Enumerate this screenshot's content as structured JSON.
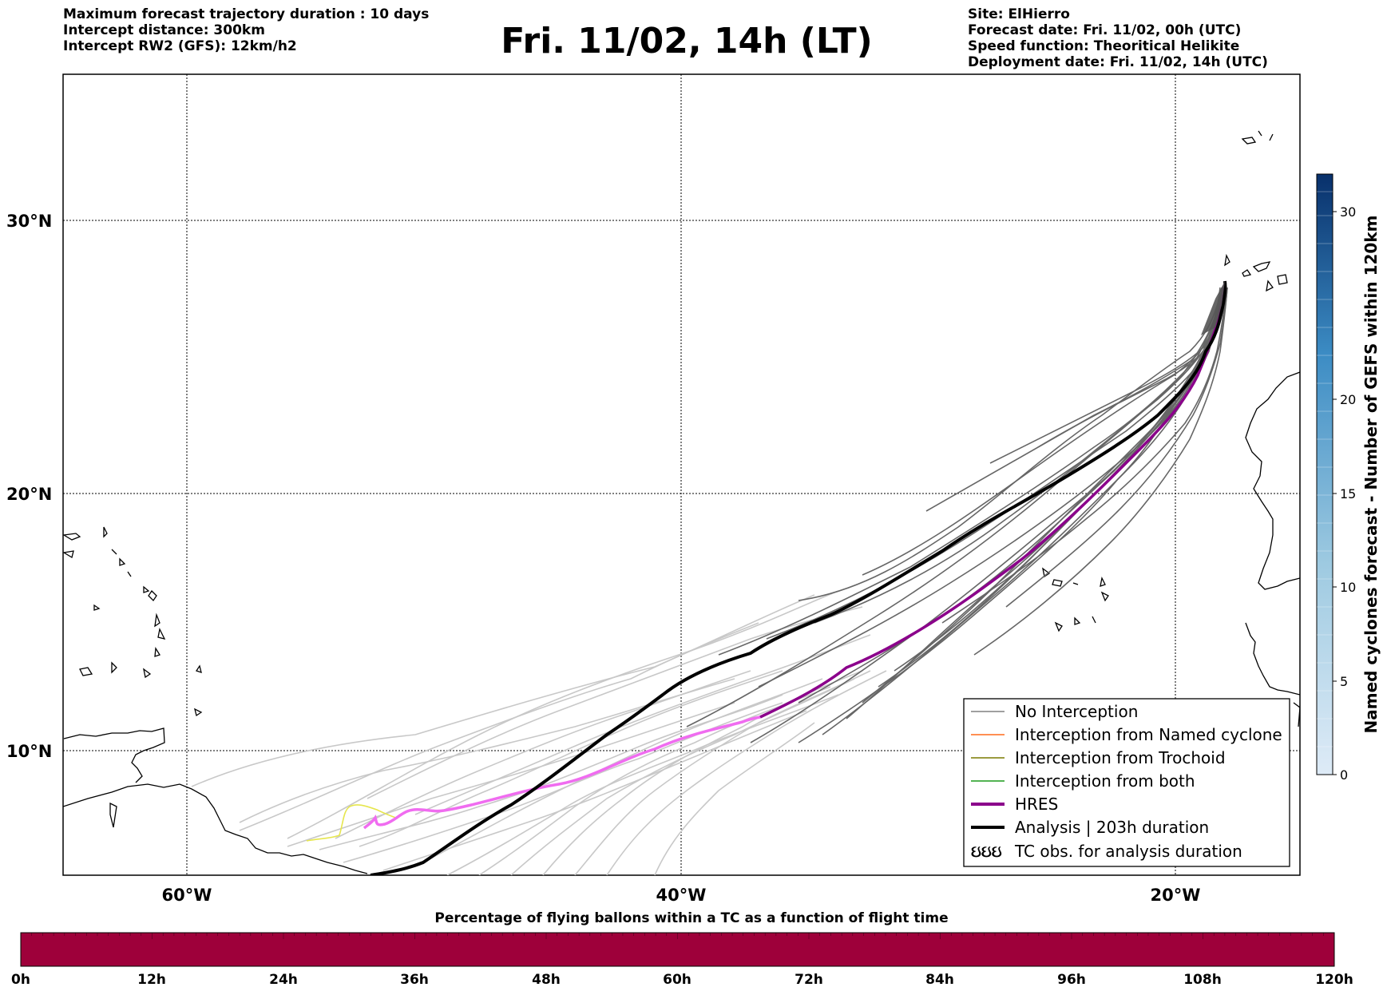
{
  "header": {
    "left": [
      "Maximum forecast trajectory duration : 10 days",
      "Intercept distance: 300km",
      "Intercept RW2 (GFS):  12km/h2"
    ],
    "title": "Fri. 11/02, 14h (LT)",
    "right": [
      "Site: ElHierro",
      "Forecast date: Fri. 11/02, 00h (UTC)",
      "Speed function: Theoritical Helikite",
      "Deployment date: Fri. 11/02, 14h (UTC)"
    ]
  },
  "map": {
    "lat_labels": [
      "30°N",
      "20°N",
      "10°N"
    ],
    "lon_labels": [
      "60°W",
      "40°W",
      "20°W"
    ],
    "legend": [
      {
        "label": "No Interception",
        "color": "#808080",
        "style": "thin"
      },
      {
        "label": "Interception from Named cyclone",
        "color": "#ff6a1a",
        "style": "thin"
      },
      {
        "label": "Interception from Trochoid",
        "color": "#7a7a00",
        "style": "thin"
      },
      {
        "label": "Interception from both",
        "color": "#1a9a1a",
        "style": "thin"
      },
      {
        "label": "HRES",
        "color": "#8b008b",
        "style": "thick"
      },
      {
        "label": "Analysis | 203h duration",
        "color": "#000000",
        "style": "thick"
      },
      {
        "label": "TC obs. for analysis duration",
        "color": "#000000",
        "style": "symbol",
        "symbol": "ઇઇઇ"
      }
    ]
  },
  "colorbar": {
    "title": "Named cyclones forecast - Number of GEFS within 120km",
    "ticks": [
      "0",
      "5",
      "10",
      "15",
      "20",
      "30"
    ],
    "color_low": "#deebf7",
    "color_high": "#08306b"
  },
  "time_bar": {
    "title": "Percentage of flying ballons within a TC as a function of flight time",
    "ticks": [
      "0h",
      "12h",
      "24h",
      "36h",
      "48h",
      "60h",
      "72h",
      "84h",
      "96h",
      "108h",
      "120h"
    ],
    "fill_color": "#9e003a"
  }
}
